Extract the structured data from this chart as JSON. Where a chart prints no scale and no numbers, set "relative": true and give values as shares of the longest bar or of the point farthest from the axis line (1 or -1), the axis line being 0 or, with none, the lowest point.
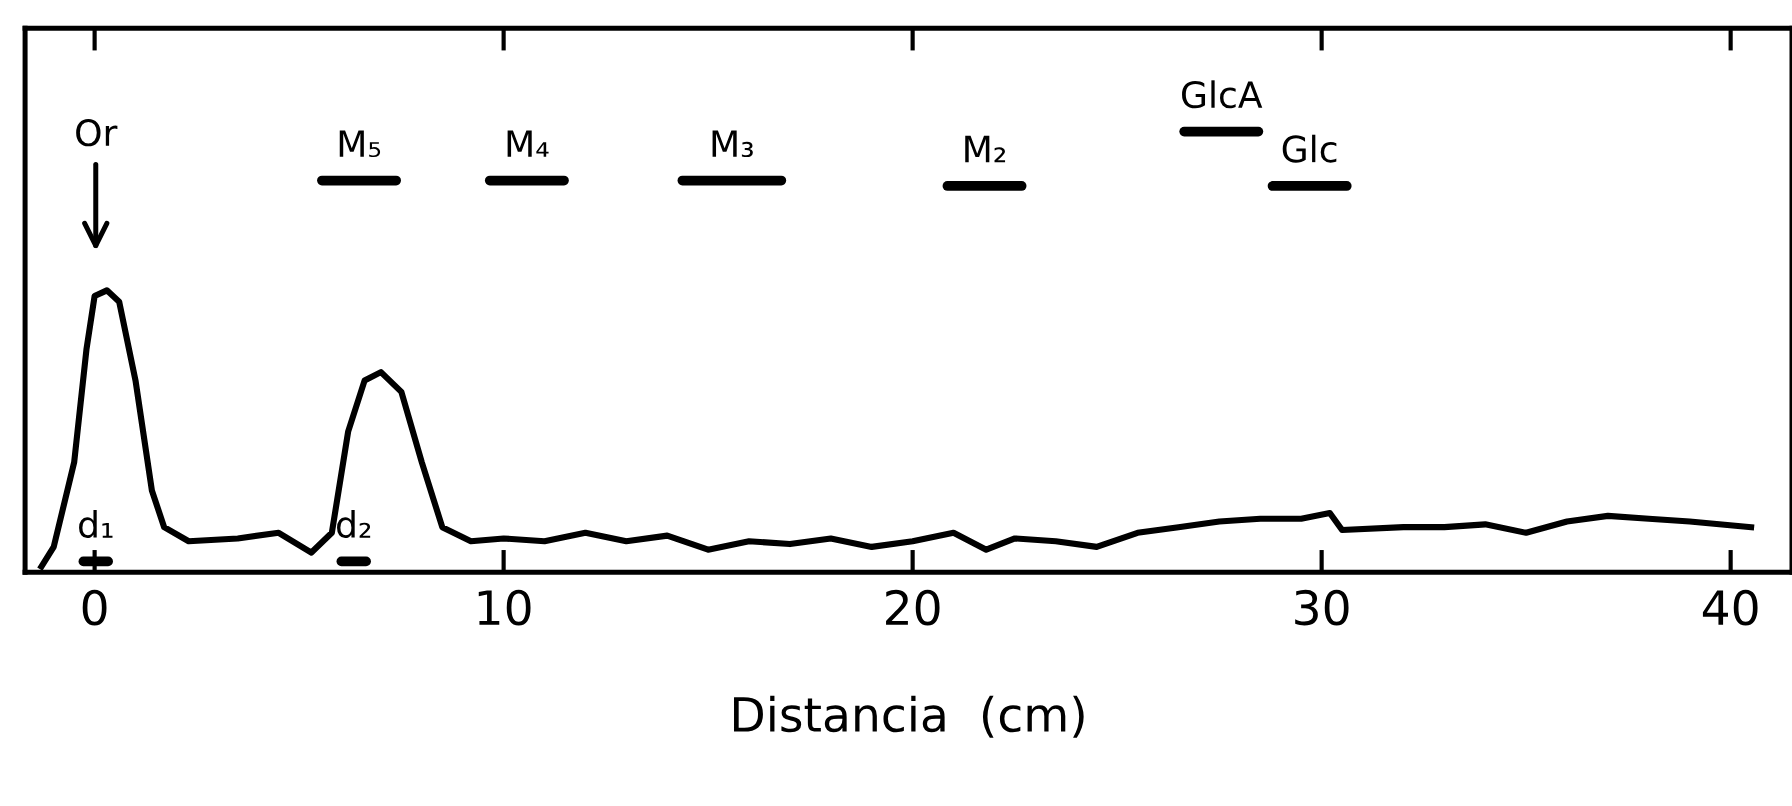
{
  "chart_data": {
    "type": "line",
    "relative": true,
    "xlabel": "Distancia  (cm)",
    "xlim": [
      -1.7,
      41.5
    ],
    "xticks": [
      0,
      10,
      20,
      30,
      40
    ],
    "grid": false,
    "legend": false,
    "marker": "none",
    "line_style": "solid",
    "series": [
      {
        "color": "#000000",
        "x": [
          -1.3,
          -1.0,
          -0.5,
          -0.2,
          0.0,
          0.3,
          0.6,
          1.0,
          1.4,
          1.7,
          2.3,
          3.5,
          4.5,
          5.3,
          5.8,
          6.2,
          6.6,
          7.0,
          7.5,
          8.0,
          8.5,
          9.2,
          10,
          11,
          12,
          13,
          14,
          15,
          16,
          17,
          18,
          19,
          20,
          21,
          21.8,
          22.5,
          23.5,
          24.5,
          25.5,
          26.5,
          27.5,
          28.5,
          29.5,
          30.2,
          30.5,
          32,
          33,
          34,
          35,
          36,
          37,
          38,
          39,
          40.5
        ],
        "values": [
          0.02,
          0.09,
          0.39,
          0.79,
          0.98,
          1.0,
          0.96,
          0.68,
          0.29,
          0.16,
          0.11,
          0.12,
          0.14,
          0.07,
          0.14,
          0.5,
          0.68,
          0.71,
          0.64,
          0.39,
          0.16,
          0.11,
          0.12,
          0.11,
          0.14,
          0.11,
          0.13,
          0.08,
          0.11,
          0.1,
          0.12,
          0.09,
          0.11,
          0.14,
          0.08,
          0.12,
          0.11,
          0.09,
          0.14,
          0.16,
          0.18,
          0.19,
          0.19,
          0.21,
          0.15,
          0.16,
          0.16,
          0.17,
          0.14,
          0.18,
          0.2,
          0.19,
          0.18,
          0.16
        ]
      }
    ],
    "annotations": [
      "Or",
      "M₅",
      "M₄",
      "M₃",
      "M₂",
      "GlcA",
      "Glc",
      "d₁",
      "d₂"
    ]
  }
}
